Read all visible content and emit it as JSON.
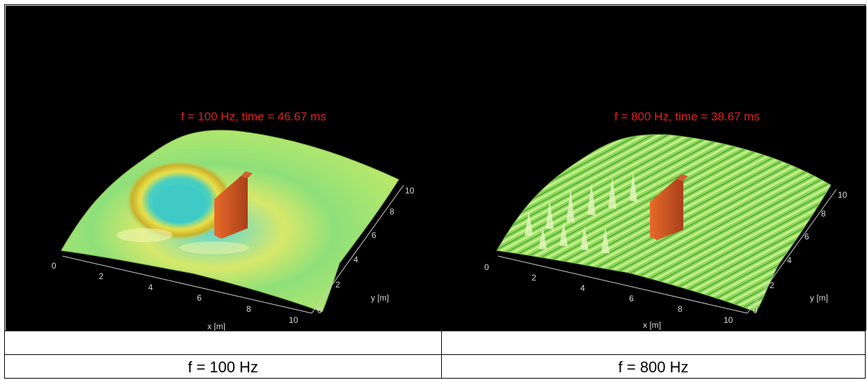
{
  "panels": [
    {
      "title": "f = 100 Hz, time = 46.67 ms",
      "x_label": "x [m]",
      "y_label": "y [m]",
      "x_ticks": [
        "0",
        "2",
        "4",
        "6",
        "8",
        "10"
      ],
      "y_ticks": [
        "0",
        "2",
        "4",
        "6",
        "8",
        "10"
      ],
      "caption": "f = 100 Hz"
    },
    {
      "title": "f = 800 Hz, time = 38.67 ms",
      "x_label": "x [m]",
      "y_label": "y [m]",
      "x_ticks": [
        "0",
        "2",
        "4",
        "6",
        "8",
        "10"
      ],
      "y_ticks": [
        "0",
        "2",
        "4",
        "6",
        "8",
        "10"
      ],
      "caption": "f = 800 Hz"
    }
  ],
  "colors": {
    "title_red": "#e0201f",
    "surface_green": "#9fe35a",
    "wall_orange": "#c8501e"
  }
}
